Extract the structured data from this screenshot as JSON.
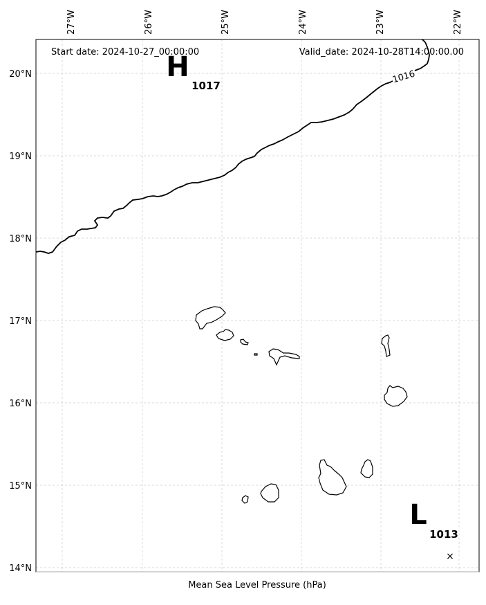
{
  "header": {
    "start_date": "Start date: 2024-10-27_00:00:00",
    "valid_date": "Valid_date: 2024-10-28T14:00:00.00"
  },
  "axes": {
    "x_label": "Mean Sea Level Pressure (hPa)",
    "lon_ticks": [
      "27°W",
      "26°W",
      "25°W",
      "24°W",
      "23°W",
      "22°W"
    ],
    "lat_ticks": [
      "20°N",
      "19°N",
      "18°N",
      "17°N",
      "16°N",
      "15°N",
      "14°N"
    ],
    "lon_range": [
      -27.35,
      -21.7
    ],
    "lat_range": [
      13.95,
      20.4
    ],
    "grid": true
  },
  "pressure_centers": [
    {
      "type": "high",
      "letter": "H",
      "value": "1017",
      "lon": -25.6,
      "lat": 20.08
    },
    {
      "type": "low",
      "letter": "L",
      "value": "1013",
      "lon": -22.5,
      "lat": 14.6
    }
  ],
  "isobars": [
    {
      "value": "1016",
      "label": "1016"
    }
  ],
  "marker": {
    "symbol": "×",
    "lon": -22.08,
    "lat": 14.14
  },
  "islands": [
    "Santo Antão",
    "São Vicente",
    "Santa Luzia",
    "Branco",
    "São Nicolau",
    "Sal",
    "Boa Vista",
    "Maio",
    "Santiago",
    "Fogo",
    "Brava"
  ]
}
